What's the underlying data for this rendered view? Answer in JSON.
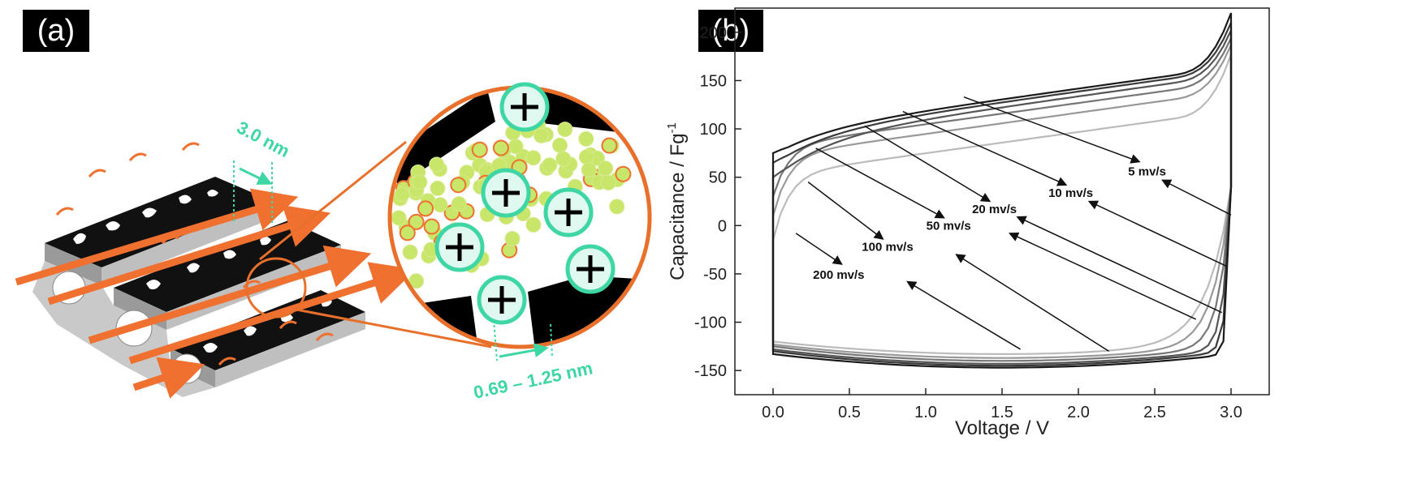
{
  "panels": {
    "a": {
      "tag": "(a)",
      "dimension_large": "3.0 nm",
      "dimension_small": "0.69 – 1.25 nm",
      "colors": {
        "carbon": "#000000",
        "arrow": "#f07030",
        "ion": "#3fd6a6",
        "electrolyte": "#c8e66a",
        "zoom_ring": "#e8702a"
      }
    },
    "b": {
      "tag": "(b)"
    }
  },
  "chart_data": {
    "type": "line",
    "xlabel": "Voltage / V",
    "ylabel": "Capacitance / Fg",
    "ylabel_sup": "-1",
    "xlim": [
      -0.25,
      3.25
    ],
    "ylim": [
      -175,
      225
    ],
    "xticks": [
      "0.0",
      "0.5",
      "1.0",
      "1.5",
      "2.0",
      "2.5",
      "3.0"
    ],
    "xtick_values": [
      0,
      0.5,
      1.0,
      1.5,
      2.0,
      2.5,
      3.0
    ],
    "yticks": [
      "-150",
      "-100",
      "-50",
      "0",
      "50",
      "100",
      "150",
      "200"
    ],
    "ytick_values": [
      -150,
      -100,
      -50,
      0,
      50,
      100,
      150,
      200
    ],
    "series": [
      {
        "name": "5 mv/s",
        "color": "#1a1a1a",
        "top": {
          "y0": 75,
          "yk": 100,
          "yend": 208
        },
        "bottom": {
          "y_start": -133,
          "y_min": -147,
          "y_end": -130,
          "rise": 0.06
        }
      },
      {
        "name": "10 mv/s",
        "color": "#3a3a3a",
        "top": {
          "y0": 65,
          "yk": 97,
          "yend": 198
        },
        "bottom": {
          "y_start": -130,
          "y_min": -145,
          "y_end": -125,
          "rise": 0.09
        }
      },
      {
        "name": "20 mv/s",
        "color": "#555555",
        "top": {
          "y0": 50,
          "yk": 92,
          "yend": 190
        },
        "bottom": {
          "y_start": -128,
          "y_min": -143,
          "y_end": -120,
          "rise": 0.14
        }
      },
      {
        "name": "50 mv/s",
        "color": "#777777",
        "top": {
          "y0": 30,
          "yk": 85,
          "yend": 182
        },
        "bottom": {
          "y_start": -125,
          "y_min": -140,
          "y_end": -110,
          "rise": 0.22
        }
      },
      {
        "name": "100 mv/s",
        "color": "#999999",
        "top": {
          "y0": 10,
          "yk": 75,
          "yend": 175
        },
        "bottom": {
          "y_start": -123,
          "y_min": -137,
          "y_end": -100,
          "rise": 0.33
        }
      },
      {
        "name": "200 mv/s",
        "color": "#bbbbbb",
        "top": {
          "y0": -15,
          "yk": 55,
          "yend": 165
        },
        "bottom": {
          "y_start": -120,
          "y_min": -133,
          "y_end": -90,
          "rise": 0.45
        }
      }
    ],
    "annotations": [
      {
        "text": "5 mv/s",
        "x": 2.45,
        "y": 56,
        "arrow_from": [
          1.25,
          133
        ],
        "arrow_to": [
          2.4,
          66
        ],
        "arrow2_from": [
          3.0,
          11
        ],
        "arrow2_to": [
          2.55,
          47
        ]
      },
      {
        "text": "10 mv/s",
        "x": 1.95,
        "y": 34,
        "arrow_from": [
          0.85,
          118
        ],
        "arrow_to": [
          1.92,
          42
        ],
        "arrow2_from": [
          2.97,
          -42
        ],
        "arrow2_to": [
          2.07,
          25
        ]
      },
      {
        "text": "20 mv/s",
        "x": 1.45,
        "y": 17,
        "arrow_from": [
          0.6,
          103
        ],
        "arrow_to": [
          1.42,
          25
        ],
        "arrow2_from": [
          2.94,
          -90
        ],
        "arrow2_to": [
          1.6,
          9
        ]
      },
      {
        "text": "50 mv/s",
        "x": 1.15,
        "y": 0,
        "arrow_from": [
          0.28,
          80
        ],
        "arrow_to": [
          1.12,
          8
        ],
        "arrow2_from": [
          2.77,
          -97
        ],
        "arrow2_to": [
          1.55,
          -8
        ]
      },
      {
        "text": "100 mv/s",
        "x": 0.75,
        "y": -22,
        "arrow_from": [
          0.23,
          45
        ],
        "arrow_to": [
          0.72,
          -14
        ],
        "arrow2_from": [
          2.2,
          -130
        ],
        "arrow2_to": [
          1.2,
          -30
        ]
      },
      {
        "text": "200 mv/s",
        "x": 0.43,
        "y": -51,
        "arrow_from": [
          0.15,
          -8
        ],
        "arrow_to": [
          0.45,
          -40
        ],
        "arrow2_from": [
          1.62,
          -128
        ],
        "arrow2_to": [
          0.88,
          -58
        ]
      }
    ]
  }
}
